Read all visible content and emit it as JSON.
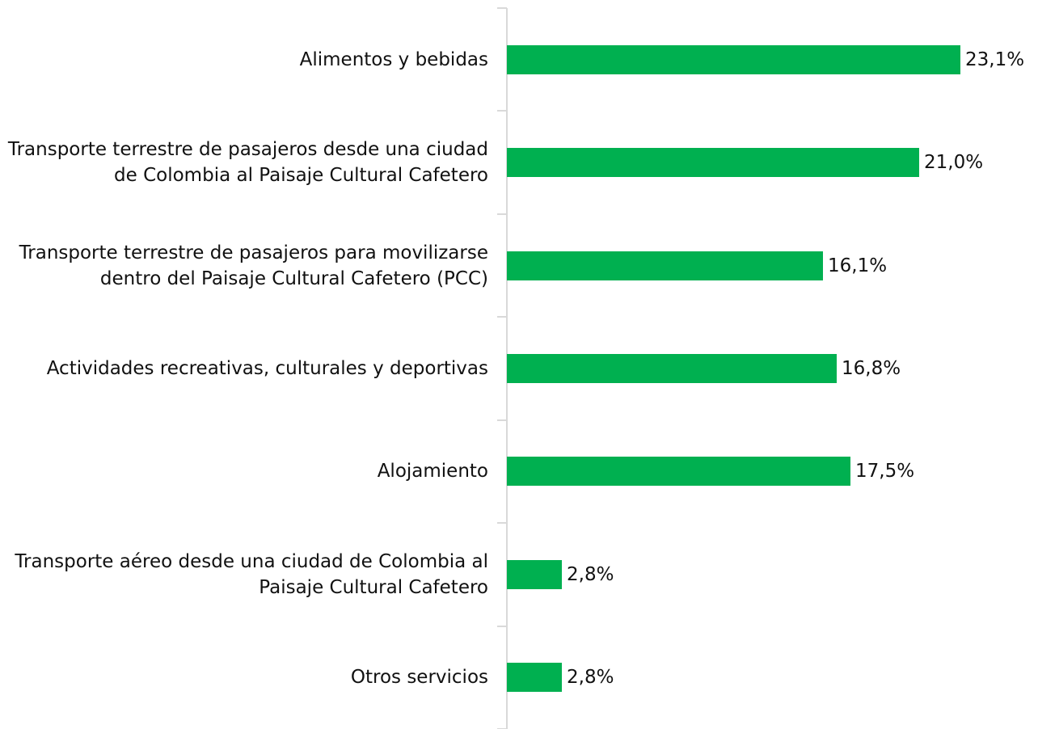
{
  "chart_data": {
    "type": "barh",
    "categories": [
      "Alimentos y bebidas",
      "Transporte terrestre de pasajeros desde una ciudad de Colombia al Paisaje Cultural Cafetero",
      "Transporte terrestre de pasajeros para movilizarse dentro del Paisaje Cultural Cafetero (PCC)",
      "Actividades recreativas, culturales y deportivas",
      "Alojamiento",
      "Transporte aéreo desde una ciudad de Colombia al Paisaje Cultural Cafetero",
      "Otros servicios"
    ],
    "values": [
      23.1,
      21.0,
      16.1,
      16.8,
      17.5,
      2.8,
      2.8
    ],
    "value_labels": [
      "23,1%",
      "21,0%",
      "16,1%",
      "16,8%",
      "17,5%",
      "2,8%",
      "2,8%"
    ],
    "color": "#00b050"
  }
}
